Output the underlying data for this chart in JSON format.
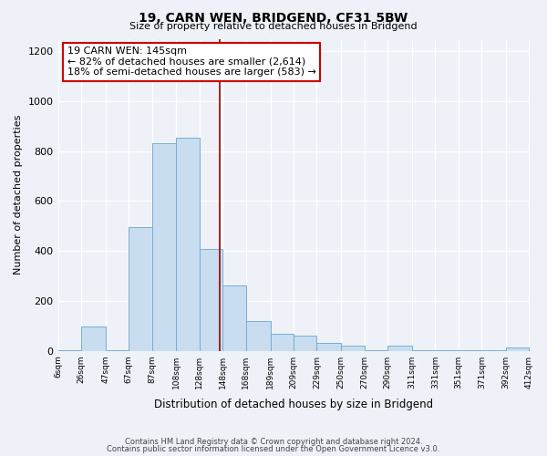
{
  "title": "19, CARN WEN, BRIDGEND, CF31 5BW",
  "subtitle": "Size of property relative to detached houses in Bridgend",
  "xlabel": "Distribution of detached houses by size in Bridgend",
  "ylabel": "Number of detached properties",
  "bar_edges": [
    6,
    26,
    47,
    67,
    87,
    108,
    128,
    148,
    168,
    189,
    209,
    229,
    250,
    270,
    290,
    311,
    331,
    351,
    371,
    392,
    412
  ],
  "bar_heights": [
    2,
    97,
    2,
    497,
    830,
    853,
    408,
    260,
    118,
    68,
    60,
    30,
    20,
    2,
    20,
    2,
    2,
    2,
    2,
    13
  ],
  "tick_labels": [
    "6sqm",
    "26sqm",
    "47sqm",
    "67sqm",
    "87sqm",
    "108sqm",
    "128sqm",
    "148sqm",
    "168sqm",
    "189sqm",
    "209sqm",
    "229sqm",
    "250sqm",
    "270sqm",
    "290sqm",
    "311sqm",
    "331sqm",
    "351sqm",
    "371sqm",
    "392sqm",
    "412sqm"
  ],
  "bar_color": "#c8ddf0",
  "bar_edge_color": "#7aaed0",
  "property_line_x": 145,
  "property_line_color": "#990000",
  "annotation_title": "19 CARN WEN: 145sqm",
  "annotation_line1": "← 82% of detached houses are smaller (2,614)",
  "annotation_line2": "18% of semi-detached houses are larger (583) →",
  "annotation_box_color": "#ffffff",
  "annotation_box_edge": "#cc0000",
  "ylim": [
    0,
    1250
  ],
  "yticks": [
    0,
    200,
    400,
    600,
    800,
    1000,
    1200
  ],
  "footer_line1": "Contains HM Land Registry data © Crown copyright and database right 2024.",
  "footer_line2": "Contains public sector information licensed under the Open Government Licence v3.0.",
  "background_color": "#eef2f8"
}
